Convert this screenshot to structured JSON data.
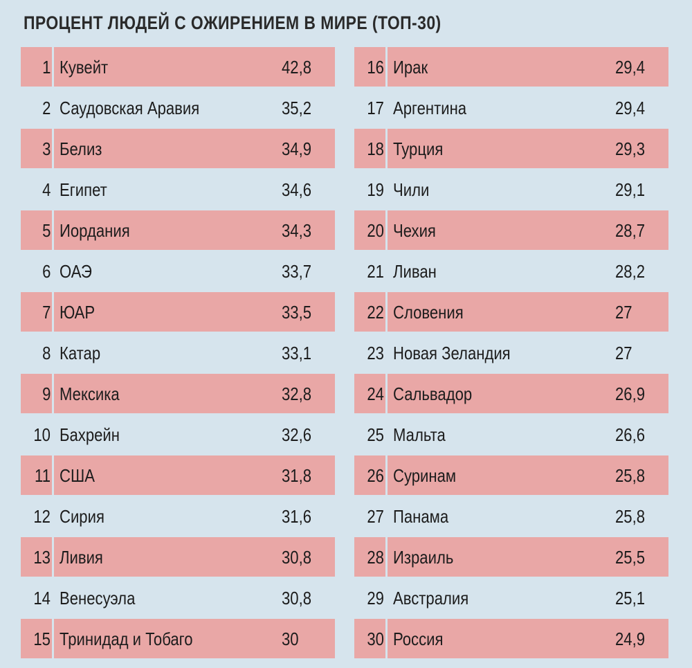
{
  "title": "ПРОЦЕНТ ЛЮДЕЙ С ОЖИРЕНИЕМ В МИРЕ (ТОП-30)",
  "tables": [
    {
      "rows": [
        [
          "1",
          "Кувейт",
          "42,8"
        ],
        [
          "2",
          "Саудовская Аравия",
          "35,2"
        ],
        [
          "3",
          "Белиз",
          "34,9"
        ],
        [
          "4",
          "Египет",
          "34,6"
        ],
        [
          "5",
          "Иордания",
          "34,3"
        ],
        [
          "6",
          "ОАЭ",
          "33,7"
        ],
        [
          "7",
          "ЮАР",
          "33,5"
        ],
        [
          "8",
          "Катар",
          "33,1"
        ],
        [
          "9",
          "Мексика",
          "32,8"
        ],
        [
          "10",
          "Бахрейн",
          "32,6"
        ],
        [
          "11",
          "США",
          "31,8"
        ],
        [
          "12",
          "Сирия",
          "31,6"
        ],
        [
          "13",
          "Ливия",
          "30,8"
        ],
        [
          "14",
          "Венесуэла",
          "30,8"
        ],
        [
          "15",
          "Тринидад и Тобаго",
          "30"
        ]
      ]
    },
    {
      "rows": [
        [
          "16",
          "Ирак",
          "29,4"
        ],
        [
          "17",
          "Аргентина",
          "29,4"
        ],
        [
          "18",
          "Турция",
          "29,3"
        ],
        [
          "19",
          "Чили",
          "29,1"
        ],
        [
          "20",
          "Чехия",
          "28,7"
        ],
        [
          "21",
          "Ливан",
          "28,2"
        ],
        [
          "22",
          "Словения",
          "27"
        ],
        [
          "23",
          "Новая Зеландия",
          "27"
        ],
        [
          "24",
          "Сальвадор",
          "26,9"
        ],
        [
          "25",
          "Мальта",
          "26,6"
        ],
        [
          "26",
          "Суринам",
          "25,8"
        ],
        [
          "27",
          "Панама",
          "25,8"
        ],
        [
          "28",
          "Израиль",
          "25,5"
        ],
        [
          "29",
          "Австралия",
          "25,1"
        ],
        [
          "30",
          "Россия",
          "24,9"
        ]
      ]
    }
  ]
}
